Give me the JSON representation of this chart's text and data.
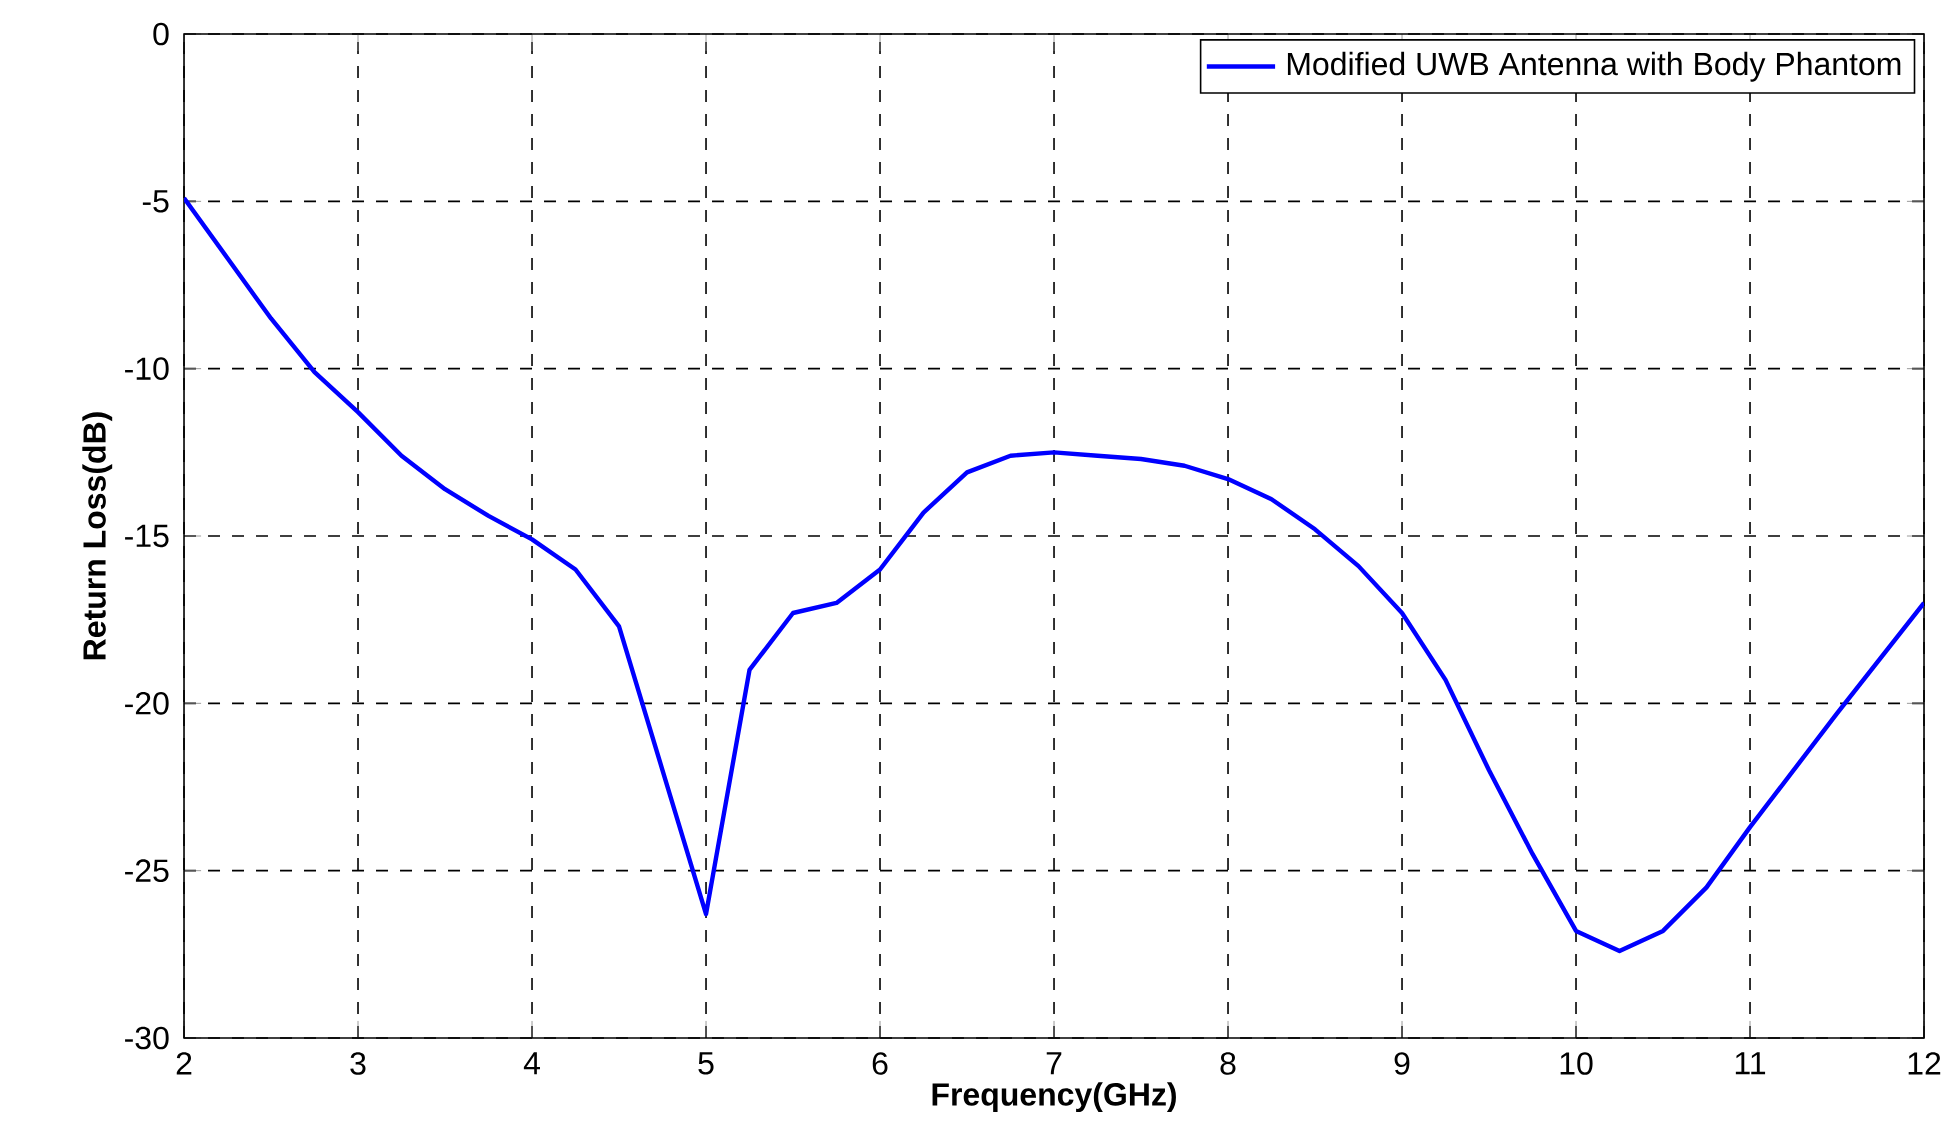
{
  "chart_data": {
    "type": "line",
    "xlabel": "Frequency(GHz)",
    "ylabel": "Return Loss(dB)",
    "xlim": [
      2,
      12
    ],
    "ylim": [
      -30,
      0
    ],
    "xticks": [
      2,
      3,
      4,
      5,
      6,
      7,
      8,
      9,
      10,
      11,
      12
    ],
    "yticks": [
      -30,
      -25,
      -20,
      -15,
      -10,
      -5,
      0
    ],
    "grid": true,
    "legend": "top right",
    "marker": "none",
    "line_style": "solid",
    "series": [
      {
        "name": "Modified UWB Antenna with Body Phantom",
        "color": "#0000ff",
        "x": [
          2,
          2.25,
          2.5,
          2.75,
          3,
          3.25,
          3.5,
          3.75,
          4,
          4.25,
          4.5,
          4.75,
          5,
          5.25,
          5.5,
          5.75,
          6,
          6.25,
          6.5,
          6.75,
          7,
          7.25,
          7.5,
          7.75,
          8,
          8.25,
          8.5,
          8.75,
          9,
          9.25,
          9.5,
          9.75,
          10,
          10.25,
          10.5,
          10.75,
          11,
          11.5,
          12
        ],
        "values": [
          -4.9,
          -6.7,
          -8.5,
          -10.1,
          -11.3,
          -12.6,
          -13.6,
          -14.4,
          -15.1,
          -16,
          -17.7,
          -22,
          -26.3,
          -19,
          -17.3,
          -17,
          -16,
          -14.3,
          -13.1,
          -12.6,
          -12.5,
          -12.6,
          -12.7,
          -12.9,
          -13.3,
          -13.9,
          -14.8,
          -15.9,
          -17.3,
          -19.3,
          -22,
          -24.5,
          -26.8,
          -27.4,
          -26.8,
          -25.5,
          -23.7,
          -20.3,
          -17
        ]
      }
    ]
  }
}
